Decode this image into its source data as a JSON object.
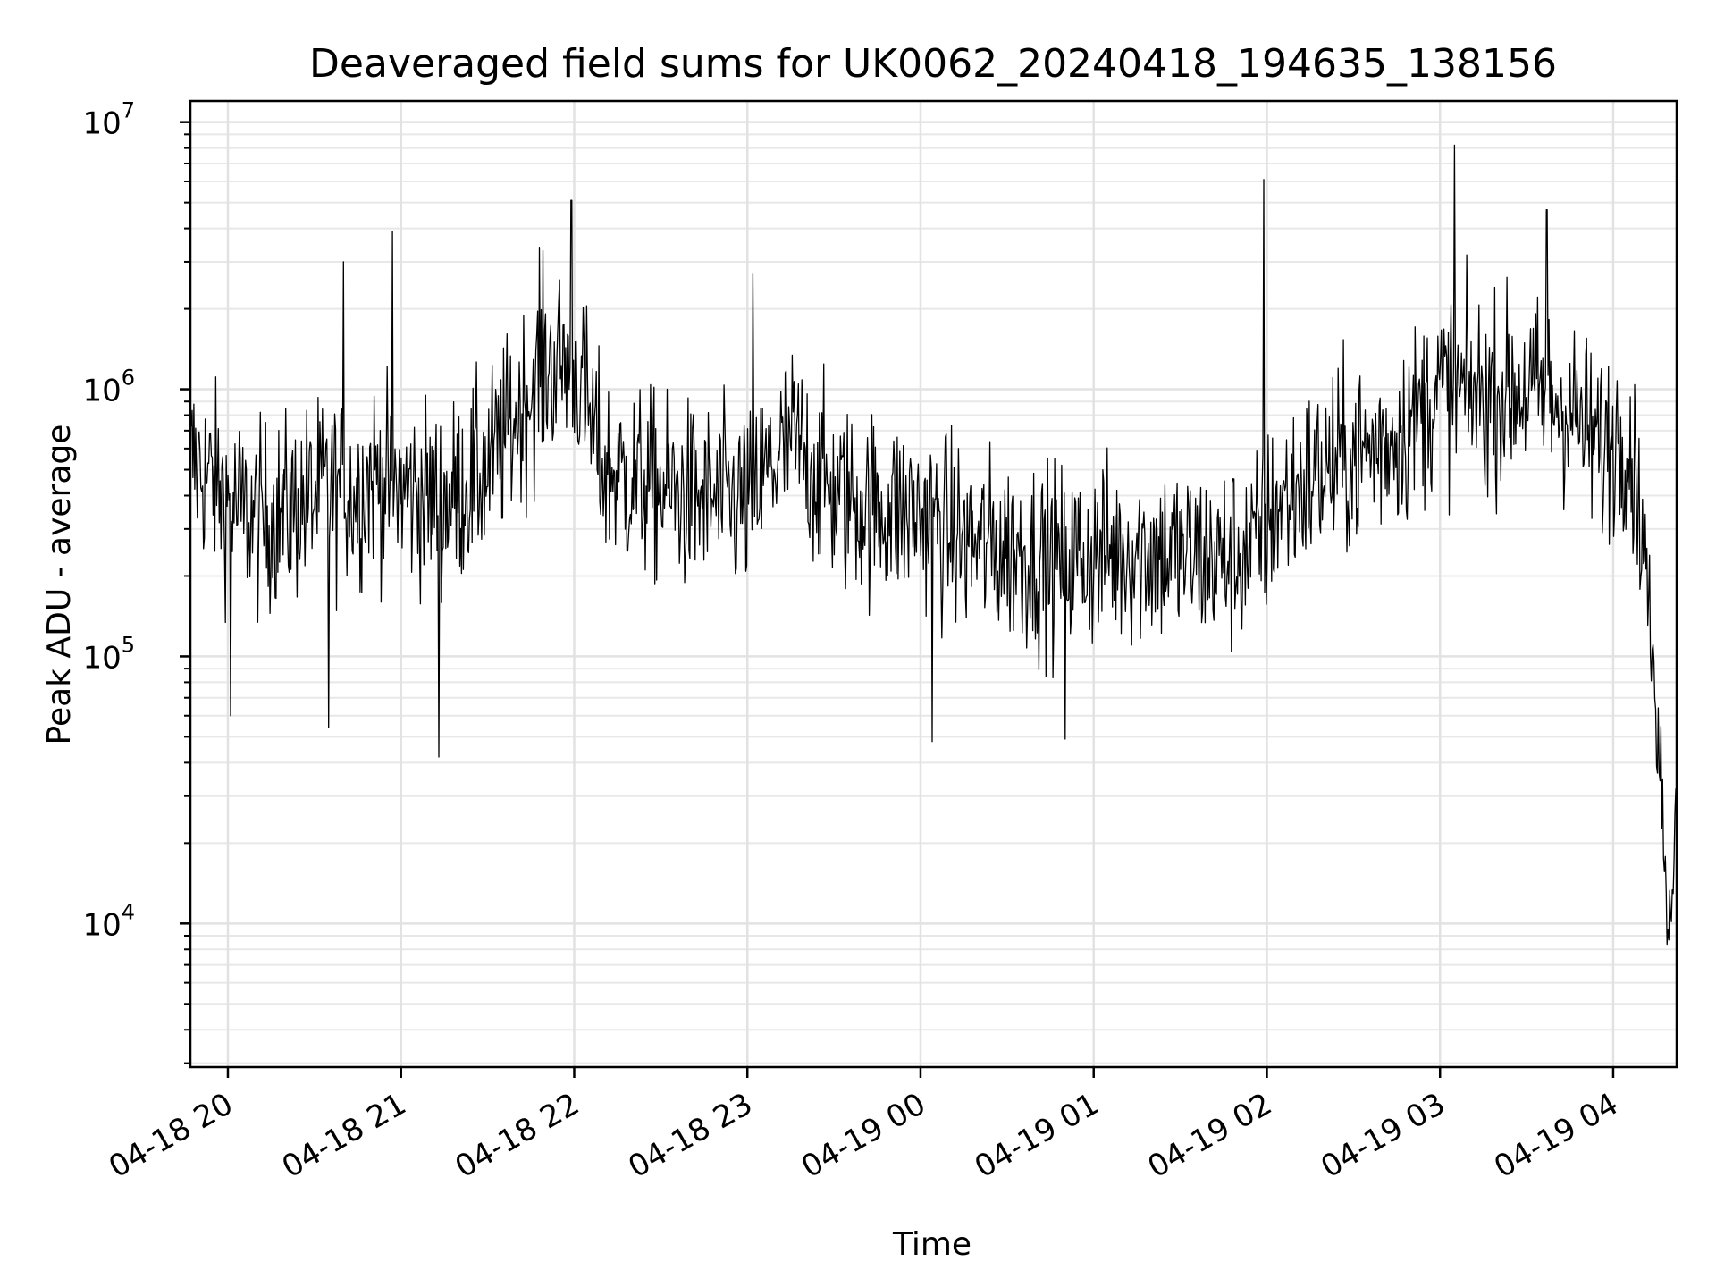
{
  "chart_data": {
    "type": "line",
    "title": "Deaveraged field sums for UK0062_20240418_194635_138156",
    "xlabel": "Time",
    "ylabel": "Peak ADU - average",
    "yscale": "log",
    "ylim": [
      2900,
      12000000
    ],
    "xlim": [
      "2024-04-18T19:47:00",
      "2024-04-19T04:22:00"
    ],
    "grid": true,
    "line_color": "#000000",
    "x_ticks": [
      "04-18 20",
      "04-18 21",
      "04-18 22",
      "04-18 23",
      "04-19 00",
      "04-19 01",
      "04-19 02",
      "04-19 03",
      "04-19 04"
    ],
    "y_ticks": [
      {
        "base": "10",
        "exp": "4"
      },
      {
        "base": "10",
        "exp": "5"
      },
      {
        "base": "10",
        "exp": "6"
      },
      {
        "base": "10",
        "exp": "7"
      }
    ],
    "series": [
      {
        "x": [
          "2024-04-18T19:47:00",
          "2024-04-18T19:55:00",
          "2024-04-18T20:00:00",
          "2024-04-18T20:10:00",
          "2024-04-18T20:20:00",
          "2024-04-18T20:35:00",
          "2024-04-18T20:45:00",
          "2024-04-18T20:50:00",
          "2024-04-18T21:00:00",
          "2024-04-18T21:15:00",
          "2024-04-18T21:30:00",
          "2024-04-18T21:40:00",
          "2024-04-18T21:50:00",
          "2024-04-18T22:00:00",
          "2024-04-18T22:10:00",
          "2024-04-18T22:30:00",
          "2024-04-18T22:45:00",
          "2024-04-18T23:00:00",
          "2024-04-18T23:15:00",
          "2024-04-18T23:30:00",
          "2024-04-18T23:45:00",
          "2024-04-19T00:00:00",
          "2024-04-19T00:15:00",
          "2024-04-19T00:30:00",
          "2024-04-19T00:45:00",
          "2024-04-19T01:00:00",
          "2024-04-19T01:15:00",
          "2024-04-19T01:30:00",
          "2024-04-19T01:45:00",
          "2024-04-19T01:55:00",
          "2024-04-19T02:05:00",
          "2024-04-19T02:20:00",
          "2024-04-19T02:35:00",
          "2024-04-19T02:50:00",
          "2024-04-19T03:00:00",
          "2024-04-19T03:15:00",
          "2024-04-19T03:30:00",
          "2024-04-19T03:45:00",
          "2024-04-19T03:55:00",
          "2024-04-19T04:05:00",
          "2024-04-19T04:10:00",
          "2024-04-19T04:14:00",
          "2024-04-19T04:17:00",
          "2024-04-19T04:20:00",
          "2024-04-19T04:22:00"
        ],
        "y": [
          550000,
          450000,
          380000,
          320000,
          350000,
          420000,
          400000,
          480000,
          420000,
          380000,
          500000,
          800000,
          1200000,
          1300000,
          500000,
          420000,
          380000,
          380000,
          650000,
          400000,
          360000,
          340000,
          270000,
          250000,
          230000,
          240000,
          250000,
          240000,
          230000,
          250000,
          380000,
          500000,
          580000,
          750000,
          1000000,
          950000,
          1000000,
          850000,
          600000,
          700000,
          300000,
          100000,
          30000,
          7000,
          30000
        ]
      }
    ],
    "spikes": [
      {
        "x": "2024-04-18T20:40:00",
        "y": 3000000
      },
      {
        "x": "2024-04-18T20:57:00",
        "y": 3900000
      },
      {
        "x": "2024-04-18T21:48:00",
        "y": 3400000
      },
      {
        "x": "2024-04-18T21:59:00",
        "y": 5100000
      },
      {
        "x": "2024-04-18T23:02:00",
        "y": 2700000
      },
      {
        "x": "2024-04-19T01:59:00",
        "y": 6100000
      },
      {
        "x": "2024-04-19T03:05:00",
        "y": 8200000
      },
      {
        "x": "2024-04-19T03:37:00",
        "y": 4700000
      },
      {
        "x": "2024-04-18T21:13:00",
        "y": 42000
      },
      {
        "x": "2024-04-18T20:35:00",
        "y": 54000
      },
      {
        "x": "2024-04-18T20:01:00",
        "y": 60000
      },
      {
        "x": "2024-04-19T00:04:00",
        "y": 48000
      },
      {
        "x": "2024-04-19T00:50:00",
        "y": 49000
      }
    ]
  }
}
